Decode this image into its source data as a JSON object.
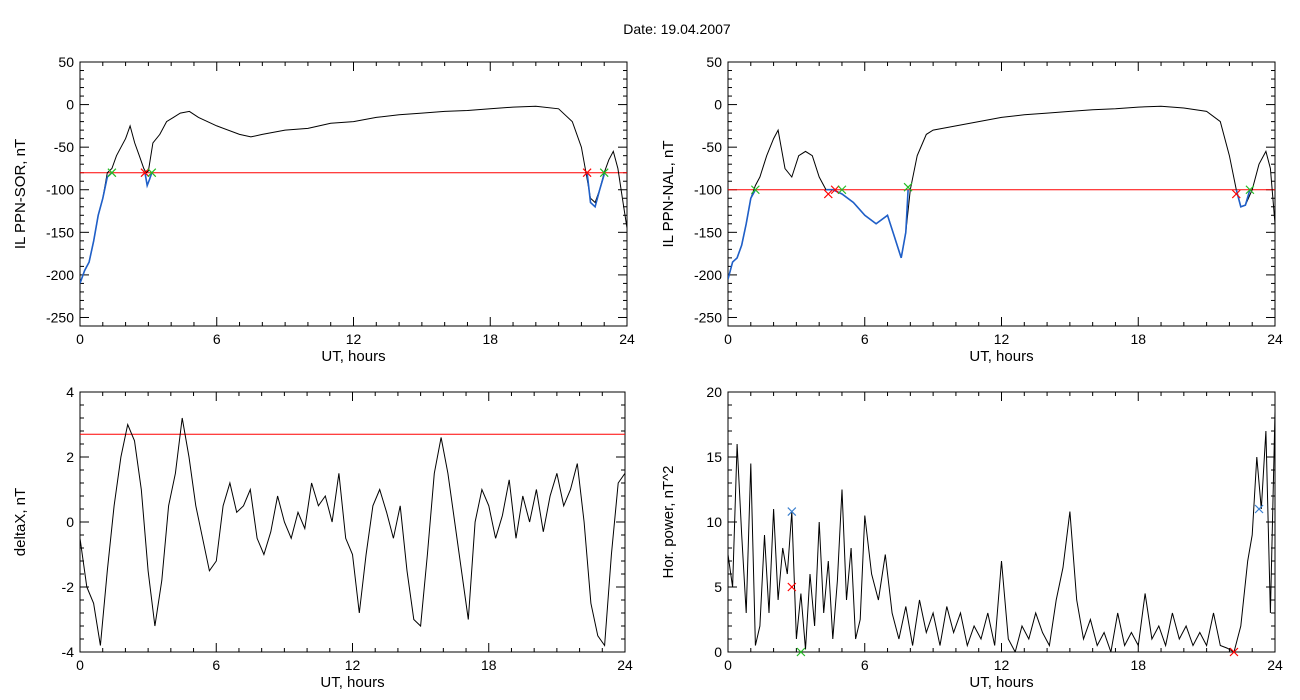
{
  "title": "Date:  19.04.2007",
  "colors": {
    "trace": "#000000",
    "substorm_trace": "#1f5fc8",
    "threshold": "#ff0000",
    "onset_marker": "#ff0000",
    "end_marker": "#22bb22",
    "power_marker": "#3a7fcf"
  },
  "chart_data": [
    {
      "id": "panel-il-sor",
      "type": "line",
      "xlabel": "UT, hours",
      "ylabel": "IL PPN-SOR, nT",
      "xlim": [
        0,
        24
      ],
      "ylim": [
        -260,
        50
      ],
      "xticks": [
        0,
        6,
        12,
        18,
        24
      ],
      "yticks": [
        -250,
        -200,
        -150,
        -100,
        -50,
        0,
        50
      ],
      "threshold": -80,
      "series": [
        {
          "role": "main",
          "x": [
            0,
            0.2,
            0.4,
            0.6,
            0.8,
            1.0,
            1.2,
            1.4,
            1.6,
            1.8,
            2.0,
            2.2,
            2.4,
            2.6,
            2.8,
            2.9,
            3.0,
            3.2,
            3.5,
            3.8,
            4.1,
            4.4,
            4.8,
            5.2,
            6.0,
            7.0,
            7.5,
            8.0,
            9.0,
            10.0,
            11.0,
            12.0,
            13.0,
            14.0,
            15.0,
            16.0,
            17.0,
            18.0,
            19.0,
            20.0,
            21.0,
            21.6,
            22.0,
            22.2,
            22.4,
            22.6,
            22.8,
            23.0,
            23.2,
            23.4,
            23.6,
            23.8,
            24.0
          ],
          "y": [
            -210,
            -195,
            -185,
            -160,
            -130,
            -110,
            -80,
            -75,
            -60,
            -50,
            -40,
            -25,
            -45,
            -60,
            -75,
            -80,
            -78,
            -45,
            -35,
            -20,
            -15,
            -10,
            -8,
            -15,
            -25,
            -35,
            -38,
            -35,
            -30,
            -28,
            -22,
            -20,
            -15,
            -12,
            -10,
            -8,
            -7,
            -5,
            -3,
            -2,
            -5,
            -20,
            -50,
            -80,
            -110,
            -115,
            -100,
            -80,
            -65,
            -55,
            -75,
            -110,
            -145
          ]
        },
        {
          "role": "substorm",
          "x": [
            0,
            0.2,
            0.4,
            0.6,
            0.8,
            1.0,
            1.2,
            1.4
          ],
          "y": [
            -210,
            -195,
            -185,
            -160,
            -130,
            -110,
            -85,
            -80
          ]
        },
        {
          "role": "substorm",
          "x": [
            2.85,
            2.95,
            3.05,
            3.15
          ],
          "y": [
            -80,
            -95,
            -88,
            -80
          ]
        },
        {
          "role": "substorm",
          "x": [
            22.25,
            22.4,
            22.6,
            22.8,
            23.0
          ],
          "y": [
            -80,
            -115,
            -120,
            -100,
            -82
          ]
        }
      ],
      "markers": [
        {
          "x": 1.4,
          "y": -80,
          "kind": "end"
        },
        {
          "x": 2.85,
          "y": -80,
          "kind": "onset"
        },
        {
          "x": 3.15,
          "y": -80,
          "kind": "end"
        },
        {
          "x": 22.25,
          "y": -80,
          "kind": "onset"
        },
        {
          "x": 23.0,
          "y": -80,
          "kind": "end"
        }
      ]
    },
    {
      "id": "panel-il-nal",
      "type": "line",
      "xlabel": "UT, hours",
      "ylabel": "IL PPN-NAL, nT",
      "xlim": [
        0,
        24
      ],
      "ylim": [
        -260,
        50
      ],
      "xticks": [
        0,
        6,
        12,
        18,
        24
      ],
      "yticks": [
        -250,
        -200,
        -150,
        -100,
        -50,
        0,
        50
      ],
      "threshold": -100,
      "series": [
        {
          "role": "main",
          "x": [
            0,
            0.2,
            0.4,
            0.6,
            0.8,
            1.0,
            1.2,
            1.4,
            1.7,
            2.0,
            2.2,
            2.5,
            2.8,
            3.1,
            3.4,
            3.7,
            4.0,
            4.3,
            4.6,
            5.0,
            5.5,
            6.0,
            6.5,
            7.0,
            7.3,
            7.6,
            7.8,
            8.0,
            8.3,
            8.7,
            9.0,
            10.0,
            11.0,
            12.0,
            13.0,
            14.0,
            15.0,
            16.0,
            17.0,
            18.0,
            19.0,
            20.0,
            21.0,
            21.6,
            22.0,
            22.3,
            22.5,
            22.7,
            23.0,
            23.3,
            23.6,
            23.8,
            24.0
          ],
          "y": [
            -205,
            -185,
            -180,
            -165,
            -140,
            -110,
            -95,
            -85,
            -60,
            -40,
            -30,
            -75,
            -85,
            -60,
            -55,
            -60,
            -85,
            -100,
            -100,
            -105,
            -115,
            -130,
            -140,
            -130,
            -155,
            -180,
            -150,
            -100,
            -60,
            -35,
            -30,
            -25,
            -20,
            -15,
            -12,
            -10,
            -8,
            -6,
            -5,
            -3,
            -2,
            -4,
            -8,
            -20,
            -60,
            -100,
            -120,
            -118,
            -100,
            -70,
            -55,
            -75,
            -140
          ]
        },
        {
          "role": "substorm",
          "x": [
            0,
            0.2,
            0.4,
            0.6,
            0.8,
            1.0,
            1.2
          ],
          "y": [
            -205,
            -185,
            -180,
            -165,
            -140,
            -110,
            -100
          ]
        },
        {
          "role": "substorm",
          "x": [
            4.3,
            4.6,
            5.0,
            5.5,
            6.0,
            6.5,
            7.0,
            7.3,
            7.6,
            7.8,
            7.9
          ],
          "y": [
            -100,
            -100,
            -105,
            -115,
            -130,
            -140,
            -130,
            -155,
            -180,
            -150,
            -100
          ]
        },
        {
          "role": "substorm",
          "x": [
            22.3,
            22.5,
            22.7,
            22.9
          ],
          "y": [
            -100,
            -120,
            -118,
            -100
          ]
        }
      ],
      "markers": [
        {
          "x": 1.2,
          "y": -100,
          "kind": "end"
        },
        {
          "x": 4.4,
          "y": -105,
          "kind": "onset"
        },
        {
          "x": 4.7,
          "y": -100,
          "kind": "onset"
        },
        {
          "x": 5.0,
          "y": -100,
          "kind": "end"
        },
        {
          "x": 7.9,
          "y": -97,
          "kind": "end"
        },
        {
          "x": 22.3,
          "y": -105,
          "kind": "onset"
        },
        {
          "x": 22.9,
          "y": -100,
          "kind": "end"
        }
      ]
    },
    {
      "id": "panel-deltax",
      "type": "line",
      "xlabel": "UT, hours",
      "ylabel": "deltaX, nT",
      "xlim": [
        0,
        24
      ],
      "ylim": [
        -4,
        4
      ],
      "xticks": [
        0,
        6,
        12,
        18,
        24
      ],
      "yticks": [
        -4,
        -2,
        0,
        2,
        4
      ],
      "threshold": 2.7,
      "series": [
        {
          "role": "main",
          "x": [
            0,
            0.3,
            0.6,
            0.9,
            1.2,
            1.5,
            1.8,
            2.1,
            2.4,
            2.7,
            3.0,
            3.3,
            3.6,
            3.9,
            4.2,
            4.5,
            4.8,
            5.1,
            5.4,
            5.7,
            6.0,
            6.3,
            6.6,
            6.9,
            7.2,
            7.5,
            7.8,
            8.1,
            8.4,
            8.7,
            9.0,
            9.3,
            9.6,
            9.9,
            10.2,
            10.5,
            10.8,
            11.1,
            11.4,
            11.7,
            12.0,
            12.3,
            12.6,
            12.9,
            13.2,
            13.5,
            13.8,
            14.1,
            14.4,
            14.7,
            15.0,
            15.3,
            15.6,
            15.9,
            16.2,
            16.5,
            16.8,
            17.1,
            17.4,
            17.7,
            18.0,
            18.3,
            18.6,
            18.9,
            19.2,
            19.5,
            19.8,
            20.1,
            20.4,
            20.7,
            21.0,
            21.3,
            21.6,
            21.9,
            22.2,
            22.5,
            22.8,
            23.1,
            23.4,
            23.7,
            24.0
          ],
          "y": [
            -0.5,
            -2.0,
            -2.5,
            -3.8,
            -1.5,
            0.5,
            2.0,
            3.0,
            2.5,
            1.0,
            -1.5,
            -3.2,
            -1.8,
            0.5,
            1.5,
            3.2,
            2.0,
            0.5,
            -0.5,
            -1.5,
            -1.2,
            0.5,
            1.2,
            0.3,
            0.5,
            1.0,
            -0.5,
            -1.0,
            -0.3,
            0.8,
            0.0,
            -0.5,
            0.3,
            -0.2,
            1.2,
            0.5,
            0.8,
            0.0,
            1.5,
            -0.5,
            -1.0,
            -2.8,
            -1.0,
            0.5,
            1.0,
            0.3,
            -0.5,
            0.5,
            -1.5,
            -3.0,
            -3.2,
            -1.0,
            1.5,
            2.6,
            1.5,
            0.0,
            -1.5,
            -3.0,
            0.0,
            1.0,
            0.5,
            -0.5,
            0.2,
            1.3,
            -0.5,
            0.8,
            0.0,
            1.0,
            -0.3,
            0.8,
            1.5,
            0.5,
            1.0,
            1.8,
            0.0,
            -2.5,
            -3.5,
            -3.8,
            -1.0,
            1.2,
            1.5
          ]
        }
      ],
      "markers": []
    },
    {
      "id": "panel-hor-power",
      "type": "line",
      "xlabel": "UT, hours",
      "ylabel": "Hor. power, nT^2",
      "xlim": [
        0,
        24
      ],
      "ylim": [
        0,
        20
      ],
      "xticks": [
        0,
        6,
        12,
        18,
        24
      ],
      "yticks": [
        0,
        5,
        10,
        15,
        20
      ],
      "threshold": null,
      "series": [
        {
          "role": "main",
          "x": [
            0,
            0.2,
            0.4,
            0.6,
            0.8,
            1.0,
            1.2,
            1.4,
            1.6,
            1.8,
            2.0,
            2.2,
            2.4,
            2.6,
            2.8,
            3.0,
            3.2,
            3.4,
            3.6,
            3.8,
            4.0,
            4.2,
            4.4,
            4.6,
            4.8,
            5.0,
            5.2,
            5.4,
            5.6,
            5.8,
            6.0,
            6.3,
            6.6,
            6.9,
            7.2,
            7.5,
            7.8,
            8.1,
            8.4,
            8.7,
            9.0,
            9.3,
            9.6,
            9.9,
            10.2,
            10.5,
            10.8,
            11.1,
            11.4,
            11.7,
            12.0,
            12.3,
            12.6,
            12.9,
            13.2,
            13.5,
            13.8,
            14.1,
            14.4,
            14.7,
            15.0,
            15.3,
            15.6,
            15.9,
            16.2,
            16.5,
            16.8,
            17.1,
            17.4,
            17.7,
            18.0,
            18.3,
            18.6,
            18.9,
            19.2,
            19.5,
            19.8,
            20.1,
            20.4,
            20.7,
            21.0,
            21.3,
            21.6,
            21.9,
            22.2,
            22.5,
            22.8,
            23.0,
            23.2,
            23.4,
            23.6,
            23.8,
            24.0
          ],
          "y": [
            7.5,
            5.0,
            16.0,
            9.0,
            3.0,
            14.5,
            0.5,
            2.0,
            9.0,
            3.0,
            11.0,
            4.0,
            8.0,
            6.0,
            10.8,
            1.0,
            4.5,
            0.2,
            6.0,
            2.0,
            10.0,
            3.0,
            7.0,
            1.0,
            5.5,
            12.5,
            4.0,
            8.0,
            1.0,
            2.5,
            10.5,
            6.0,
            4.0,
            7.5,
            3.0,
            1.0,
            3.5,
            0.5,
            4.0,
            1.5,
            3.0,
            0.5,
            3.5,
            1.5,
            3.0,
            0.5,
            2.0,
            1.0,
            3.0,
            0.5,
            7.0,
            1.0,
            0.0,
            2.0,
            1.0,
            3.0,
            1.5,
            0.5,
            4.0,
            6.5,
            10.8,
            4.0,
            1.0,
            2.5,
            0.5,
            1.5,
            0.0,
            3.0,
            0.5,
            1.5,
            0.5,
            4.5,
            1.0,
            2.0,
            0.5,
            3.0,
            1.0,
            2.0,
            0.5,
            1.5,
            0.5,
            3.0,
            0.5,
            0.3,
            0.0,
            2.0,
            7.0,
            9.0,
            15.0,
            11.0,
            17.0,
            3.0,
            18.5
          ]
        }
      ],
      "markers": [
        {
          "x": 2.8,
          "y": 10.8,
          "kind": "power"
        },
        {
          "x": 2.8,
          "y": 5.0,
          "kind": "onset"
        },
        {
          "x": 3.2,
          "y": 0.0,
          "kind": "end"
        },
        {
          "x": 22.2,
          "y": 0.0,
          "kind": "onset"
        },
        {
          "x": 23.3,
          "y": 11.0,
          "kind": "power"
        }
      ]
    }
  ]
}
